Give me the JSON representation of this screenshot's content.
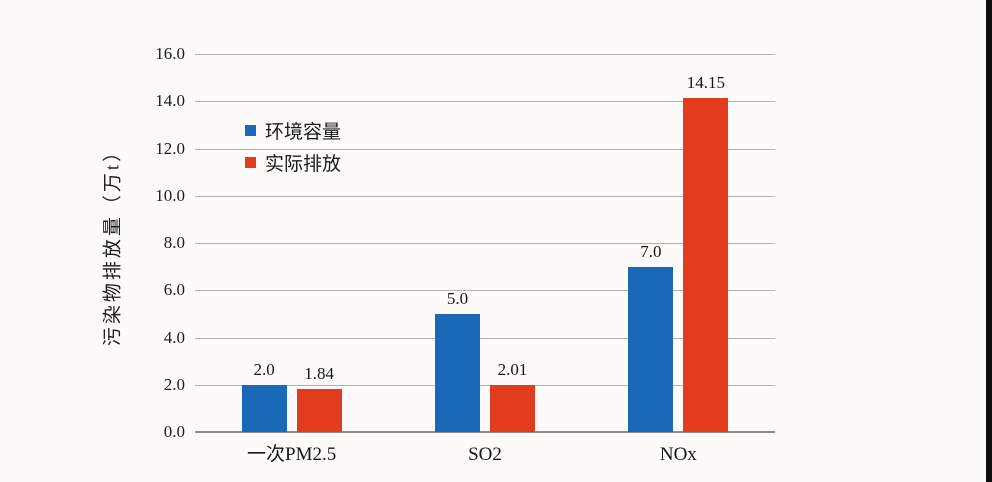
{
  "page": {
    "background_color": "#fcfbfa",
    "right_edge_strip_color": "#0d0d0d"
  },
  "chart_data": {
    "type": "bar",
    "title": "",
    "ylabel": "污染物排放量（万t）",
    "xlabel": "",
    "categories": [
      "一次PM2.5",
      "SO2",
      "NOx"
    ],
    "category_keys": [
      "pm25",
      "so2",
      "nox"
    ],
    "series": [
      {
        "name": "环境容量",
        "key": "env-capacity",
        "color": "#1a68b8",
        "values": [
          2.0,
          5.0,
          7.0
        ],
        "value_labels": [
          "2.0",
          "5.0",
          "7.0"
        ]
      },
      {
        "name": "实际排放",
        "key": "actual-emission",
        "color": "#e23c1e",
        "values": [
          1.84,
          2.01,
          14.15
        ],
        "value_labels": [
          "1.84",
          "2.01",
          "14.15"
        ]
      }
    ],
    "ylim": [
      0,
      16
    ],
    "ytick_step": 2,
    "ytick_labels": [
      "0.0",
      "2.0",
      "4.0",
      "6.0",
      "8.0",
      "10.0",
      "12.0",
      "14.0",
      "16.0"
    ],
    "grid": true,
    "gridline_color": "#b4b2b0",
    "axis_line_color": "#8f8d8b",
    "legend_position": "upper-left-inside",
    "legend_entries": [
      "环境容量",
      "实际排放"
    ]
  }
}
